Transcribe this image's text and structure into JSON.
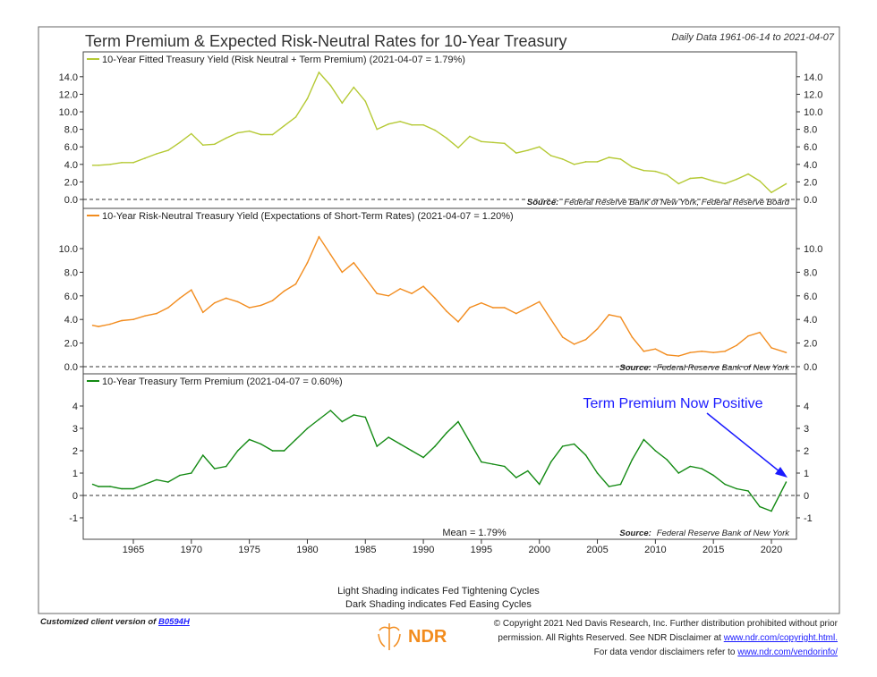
{
  "title": "Term Premium & Expected Risk-Neutral Rates for 10-Year Treasury",
  "date_range": "Daily Data 1961-06-14 to 2021-04-07",
  "shading_note_1": "Light Shading indicates Fed Tightening Cycles",
  "shading_note_2": "Dark Shading indicates Fed Easing Cycles",
  "footer": {
    "client_prefix": "Customized client version of",
    "client_code": "B0594H",
    "logo_text": "NDR",
    "copyright_1": "© Copyright 2021 Ned Davis Research, Inc. Further distribution prohibited without prior",
    "copyright_2": "permission. All Rights Reserved. See NDR Disclaimer at",
    "copyright_link": "www.ndr.com/copyright.html.",
    "copyright_3": "For data vendor disclaimers refer to",
    "vendor_link": "www.ndr.com/vendorinfo/"
  },
  "chart_data": [
    {
      "type": "line",
      "legend": "10-Year Fitted Treasury Yield (Risk Neutral + Term Premium) (2021-04-07 = 1.79%)",
      "source_label": "Source:",
      "source": "Federal Reserve Bank of New York, Federal Reserve Board",
      "color": "#b5c934",
      "ylim": [
        0,
        15
      ],
      "yticks": [
        "0.0",
        "2.0",
        "4.0",
        "6.0",
        "8.0",
        "10.0",
        "12.0",
        "14.0"
      ],
      "x": [
        1961.5,
        1962,
        1963,
        1964,
        1965,
        1966,
        1967,
        1968,
        1969,
        1970,
        1971,
        1972,
        1973,
        1974,
        1975,
        1976,
        1977,
        1978,
        1979,
        1980,
        1981,
        1982,
        1983,
        1984,
        1985,
        1986,
        1987,
        1988,
        1989,
        1990,
        1991,
        1992,
        1993,
        1994,
        1995,
        1996,
        1997,
        1998,
        1999,
        2000,
        2001,
        2002,
        2003,
        2004,
        2005,
        2006,
        2007,
        2008,
        2009,
        2010,
        2011,
        2012,
        2013,
        2014,
        2015,
        2016,
        2017,
        2018,
        2019,
        2020,
        2021.27
      ],
      "values": [
        3.9,
        3.9,
        4.0,
        4.2,
        4.2,
        4.7,
        5.2,
        5.6,
        6.5,
        7.5,
        6.2,
        6.3,
        7.0,
        7.6,
        7.8,
        7.4,
        7.4,
        8.4,
        9.4,
        11.5,
        14.5,
        13.0,
        11.0,
        12.8,
        11.2,
        8.0,
        8.6,
        8.9,
        8.5,
        8.5,
        7.9,
        7.0,
        5.9,
        7.2,
        6.6,
        6.5,
        6.4,
        5.3,
        5.6,
        6.0,
        5.0,
        4.6,
        4.0,
        4.3,
        4.3,
        4.8,
        4.6,
        3.7,
        3.3,
        3.2,
        2.8,
        1.8,
        2.4,
        2.5,
        2.1,
        1.8,
        2.3,
        2.9,
        2.1,
        0.8,
        1.79
      ]
    },
    {
      "type": "line",
      "legend": "10-Year Risk-Neutral Treasury Yield (Expectations of Short-Term Rates) (2021-04-07 = 1.20%)",
      "source_label": "Source:",
      "source": "Federal Reserve Bank of New York",
      "color": "#f28c1e",
      "ylim": [
        0,
        11.5
      ],
      "yticks": [
        "0.0",
        "2.0",
        "4.0",
        "6.0",
        "8.0",
        "10.0"
      ],
      "x": [
        1961.5,
        1962,
        1963,
        1964,
        1965,
        1966,
        1967,
        1968,
        1969,
        1970,
        1971,
        1972,
        1973,
        1974,
        1975,
        1976,
        1977,
        1978,
        1979,
        1980,
        1981,
        1982,
        1983,
        1984,
        1985,
        1986,
        1987,
        1988,
        1989,
        1990,
        1991,
        1992,
        1993,
        1994,
        1995,
        1996,
        1997,
        1998,
        1999,
        2000,
        2001,
        2002,
        2003,
        2004,
        2005,
        2006,
        2007,
        2008,
        2009,
        2010,
        2011,
        2012,
        2013,
        2014,
        2015,
        2016,
        2017,
        2018,
        2019,
        2020,
        2021.27
      ],
      "values": [
        3.5,
        3.4,
        3.6,
        3.9,
        4.0,
        4.3,
        4.5,
        5.0,
        5.8,
        6.5,
        4.6,
        5.4,
        5.8,
        5.5,
        5.0,
        5.2,
        5.6,
        6.4,
        7.0,
        8.8,
        11.0,
        9.5,
        8.0,
        8.8,
        7.5,
        6.2,
        6.0,
        6.6,
        6.2,
        6.8,
        5.8,
        4.7,
        3.8,
        5.0,
        5.4,
        5.0,
        5.0,
        4.5,
        5.0,
        5.5,
        4.0,
        2.5,
        1.9,
        2.3,
        3.2,
        4.4,
        4.2,
        2.5,
        1.3,
        1.5,
        1.0,
        0.9,
        1.2,
        1.3,
        1.2,
        1.3,
        1.8,
        2.6,
        2.9,
        1.6,
        1.2
      ]
    },
    {
      "type": "line",
      "legend": "10-Year Treasury Term Premium (2021-04-07 = 0.60%)",
      "source_label": "Source:",
      "source": "Federal Reserve Bank of New York",
      "mean_label": "Mean = 1.79%",
      "annotation": "Term Premium Now Positive",
      "annotation_color": "#1a1aff",
      "color": "#138a13",
      "ylim": [
        -1.5,
        4.8
      ],
      "yticks": [
        "-1",
        "0",
        "1",
        "2",
        "3",
        "4"
      ],
      "x": [
        1961.5,
        1962,
        1963,
        1964,
        1965,
        1966,
        1967,
        1968,
        1969,
        1970,
        1971,
        1972,
        1973,
        1974,
        1975,
        1976,
        1977,
        1978,
        1979,
        1980,
        1981,
        1982,
        1983,
        1984,
        1985,
        1986,
        1987,
        1988,
        1989,
        1990,
        1991,
        1992,
        1993,
        1994,
        1995,
        1996,
        1997,
        1998,
        1999,
        2000,
        2001,
        2002,
        2003,
        2004,
        2005,
        2006,
        2007,
        2008,
        2009,
        2010,
        2011,
        2012,
        2013,
        2014,
        2015,
        2016,
        2017,
        2018,
        2019,
        2020,
        2021.27
      ],
      "values": [
        0.5,
        0.4,
        0.4,
        0.3,
        0.3,
        0.5,
        0.7,
        0.6,
        0.9,
        1.0,
        1.8,
        1.2,
        1.3,
        2.0,
        2.5,
        2.3,
        2.0,
        2.0,
        2.5,
        3.0,
        3.4,
        3.8,
        3.3,
        3.6,
        3.5,
        2.2,
        2.6,
        2.3,
        2.0,
        1.7,
        2.2,
        2.8,
        3.3,
        2.4,
        1.5,
        1.4,
        1.3,
        0.8,
        1.1,
        0.5,
        1.5,
        2.2,
        2.3,
        1.8,
        1.0,
        0.4,
        0.5,
        1.6,
        2.5,
        2.0,
        1.6,
        1.0,
        1.3,
        1.2,
        0.9,
        0.5,
        0.3,
        0.2,
        -0.5,
        -0.7,
        0.6
      ]
    }
  ],
  "xticks": [
    "1965",
    "1970",
    "1975",
    "1980",
    "1985",
    "1990",
    "1995",
    "2000",
    "2005",
    "2010",
    "2015",
    "2020"
  ]
}
